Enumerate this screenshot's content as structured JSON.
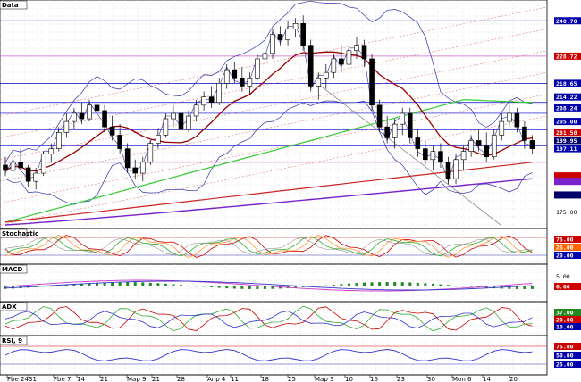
{
  "chart_data": {
    "type": "line",
    "candles": [
      [
        192,
        195,
        188,
        190
      ],
      [
        190,
        196,
        186,
        193
      ],
      [
        193,
        198,
        190,
        191
      ],
      [
        191,
        192,
        184,
        186
      ],
      [
        186,
        191,
        183,
        189
      ],
      [
        189,
        197,
        188,
        196
      ],
      [
        196,
        200,
        193,
        198
      ],
      [
        198,
        206,
        197,
        204
      ],
      [
        204,
        211,
        202,
        208
      ],
      [
        208,
        213,
        205,
        211
      ],
      [
        211,
        215,
        207,
        209
      ],
      [
        209,
        216,
        208,
        214
      ],
      [
        214,
        217,
        210,
        212
      ],
      [
        212,
        214,
        204,
        206
      ],
      [
        206,
        210,
        201,
        203
      ],
      [
        203,
        207,
        196,
        198
      ],
      [
        198,
        200,
        189,
        191
      ],
      [
        191,
        194,
        187,
        189
      ],
      [
        189,
        195,
        186,
        193
      ],
      [
        193,
        201,
        192,
        200
      ],
      [
        200,
        205,
        198,
        203
      ],
      [
        203,
        211,
        202,
        209
      ],
      [
        209,
        214,
        206,
        211
      ],
      [
        211,
        213,
        203,
        205
      ],
      [
        205,
        212,
        204,
        210
      ],
      [
        210,
        216,
        208,
        214
      ],
      [
        214,
        219,
        212,
        217
      ],
      [
        217,
        221,
        213,
        215
      ],
      [
        215,
        224,
        214,
        222
      ],
      [
        222,
        229,
        220,
        227
      ],
      [
        227,
        230,
        222,
        224
      ],
      [
        224,
        228,
        219,
        221
      ],
      [
        221,
        226,
        218,
        224
      ],
      [
        224,
        233,
        223,
        231
      ],
      [
        231,
        236,
        229,
        233
      ],
      [
        233,
        242,
        231,
        240
      ],
      [
        240,
        243,
        236,
        238
      ],
      [
        238,
        245,
        236,
        242
      ],
      [
        242,
        246,
        239,
        244
      ],
      [
        244,
        247,
        234,
        236
      ],
      [
        236,
        238,
        219,
        221
      ],
      [
        221,
        226,
        216,
        224
      ],
      [
        224,
        229,
        220,
        226
      ],
      [
        226,
        233,
        224,
        231
      ],
      [
        231,
        236,
        226,
        229
      ],
      [
        229,
        236,
        227,
        234
      ],
      [
        234,
        239,
        231,
        236
      ],
      [
        236,
        238,
        228,
        231
      ],
      [
        231,
        233,
        212,
        214
      ],
      [
        214,
        216,
        204,
        206
      ],
      [
        206,
        210,
        200,
        202
      ],
      [
        202,
        209,
        198,
        207
      ],
      [
        207,
        213,
        203,
        211
      ],
      [
        211,
        213,
        200,
        202
      ],
      [
        202,
        205,
        195,
        198
      ],
      [
        198,
        201,
        192,
        194
      ],
      [
        194,
        199,
        190,
        197
      ],
      [
        197,
        200,
        191,
        193
      ],
      [
        193,
        195,
        185,
        187
      ],
      [
        187,
        196,
        185,
        194
      ],
      [
        194,
        199,
        190,
        197
      ],
      [
        197,
        203,
        195,
        201
      ],
      [
        201,
        205,
        197,
        199
      ],
      [
        199,
        204,
        193,
        195
      ],
      [
        195,
        205,
        194,
        203
      ],
      [
        203,
        211,
        201,
        208
      ],
      [
        208,
        214,
        206,
        211
      ],
      [
        211,
        213,
        204,
        206
      ],
      [
        206,
        208,
        198,
        201
      ],
      [
        201,
        203,
        196,
        198
      ]
    ],
    "right_axis_labels": [
      "240.70",
      "228.72",
      "218.65",
      "214.22",
      "208.24",
      "205.00",
      "201.50",
      "199.95",
      "197.11",
      "175.00"
    ],
    "stoch_labels": [
      "75.00",
      "25.00",
      "20.00"
    ],
    "macd_labels": [
      "5.00",
      "0.00"
    ],
    "adx_labels": [
      "37.00",
      "20.00",
      "10.00"
    ],
    "rsi_labels": [
      "75.00",
      "50.00",
      "25.00"
    ],
    "date_labels": [
      "Fbe 24",
      "31",
      "Fbe 7",
      "14",
      "21",
      "Map 9",
      "21",
      "28",
      "Anp 4",
      "11",
      "18",
      "25",
      "Map 3",
      "10",
      "16",
      "23",
      "30",
      "Mon 6",
      "14",
      "20"
    ],
    "panel_titles": [
      "Data",
      "Stochastic",
      "MACD",
      "ADX",
      "RSI, 9"
    ]
  }
}
